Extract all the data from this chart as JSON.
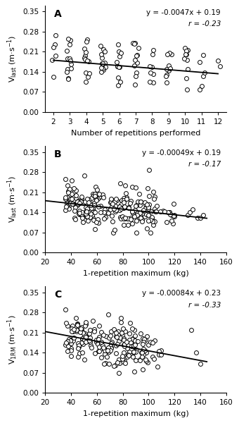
{
  "panel_A": {
    "label": "A",
    "equation": "y = -0.0047x + 0.19",
    "r_value": "r = -0.23",
    "slope": -0.0047,
    "intercept": 0.19,
    "x_min": 2,
    "x_max": 12,
    "xlabel": "Number of repetitions performed",
    "ylabel": "V$_\\mathrm{last}$ (m·s$^{-1}$)",
    "ylim": [
      0.0,
      0.37
    ],
    "yticks": [
      0.0,
      0.07,
      0.14,
      0.21,
      0.28,
      0.35
    ],
    "xticks": [
      2,
      3,
      4,
      5,
      6,
      7,
      8,
      9,
      10,
      11,
      12
    ],
    "xlim": [
      1.5,
      12.5
    ]
  },
  "panel_B": {
    "label": "B",
    "equation": "y = -0.00049x + 0.19",
    "r_value": "r = -0.17",
    "slope": -0.00049,
    "intercept": 0.19,
    "xlabel": "1-repetition maximum (kg)",
    "ylabel": "V$_\\mathrm{last}$ (m·s$^{-1}$)",
    "ylim": [
      0.0,
      0.37
    ],
    "yticks": [
      0.0,
      0.07,
      0.14,
      0.21,
      0.28,
      0.35
    ],
    "xlim": [
      20,
      160
    ],
    "xticks": [
      20,
      40,
      60,
      80,
      100,
      120,
      140,
      160
    ],
    "line_x": [
      20,
      145
    ]
  },
  "panel_C": {
    "label": "C",
    "equation": "y = -0.00084x + 0.23",
    "r_value": "r = -0.33",
    "slope": -0.00084,
    "intercept": 0.23,
    "xlabel": "1-repetition maximum (kg)",
    "ylabel": "V$_\\mathrm{1RM}$ (m·s$^{-1}$)",
    "ylim": [
      0.0,
      0.37
    ],
    "yticks": [
      0.0,
      0.07,
      0.14,
      0.21,
      0.28,
      0.35
    ],
    "xlim": [
      20,
      160
    ],
    "xticks": [
      20,
      40,
      60,
      80,
      100,
      120,
      140,
      160
    ],
    "line_x": [
      20,
      145
    ]
  },
  "marker_size": 18,
  "marker_facecolor": "white",
  "marker_edgecolor": "black",
  "marker_edgewidth": 0.7,
  "line_color": "black",
  "line_width": 1.3,
  "background_color": "white",
  "font_size_label": 8,
  "font_size_tick": 7.5,
  "font_size_eq": 7.5,
  "font_size_panel": 10
}
